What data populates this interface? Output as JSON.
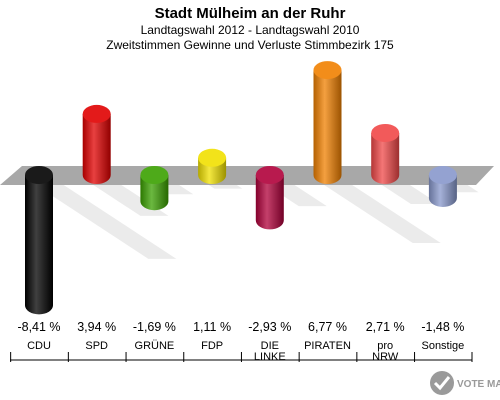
{
  "chart_data": {
    "type": "bar",
    "title": "Stadt Mülheim an der Ruhr",
    "subtitle": "Landtagswahl 2012 - Landtagswahl 2010",
    "subtitle2": "Zweitstimmen Gewinne und Verluste Stimmbezirk 175",
    "categories": [
      {
        "lines": [
          "CDU"
        ]
      },
      {
        "lines": [
          "SPD"
        ]
      },
      {
        "lines": [
          "GRÜNE"
        ]
      },
      {
        "lines": [
          "FDP"
        ]
      },
      {
        "lines": [
          "DIE",
          "LINKE"
        ]
      },
      {
        "lines": [
          "PIRATEN"
        ]
      },
      {
        "lines": [
          "pro",
          "NRW"
        ]
      },
      {
        "lines": [
          "Sonstige"
        ]
      }
    ],
    "values": [
      -8.41,
      3.94,
      -1.69,
      1.11,
      -2.93,
      6.77,
      2.71,
      -1.48
    ],
    "value_labels": [
      "-8,41 %",
      "3,94 %",
      "-1,69 %",
      "1,11 %",
      "-2,93 %",
      "6,77 %",
      "2,71 %",
      "-1,48 %"
    ],
    "colors": [
      "#000000",
      "#e00000",
      "#3aa000",
      "#f0e000",
      "#b0003a",
      "#f08000",
      "#f04848",
      "#8898cc"
    ],
    "zero_band_color": "#a8a8a8"
  },
  "watermark": "VOTE MANAGER"
}
